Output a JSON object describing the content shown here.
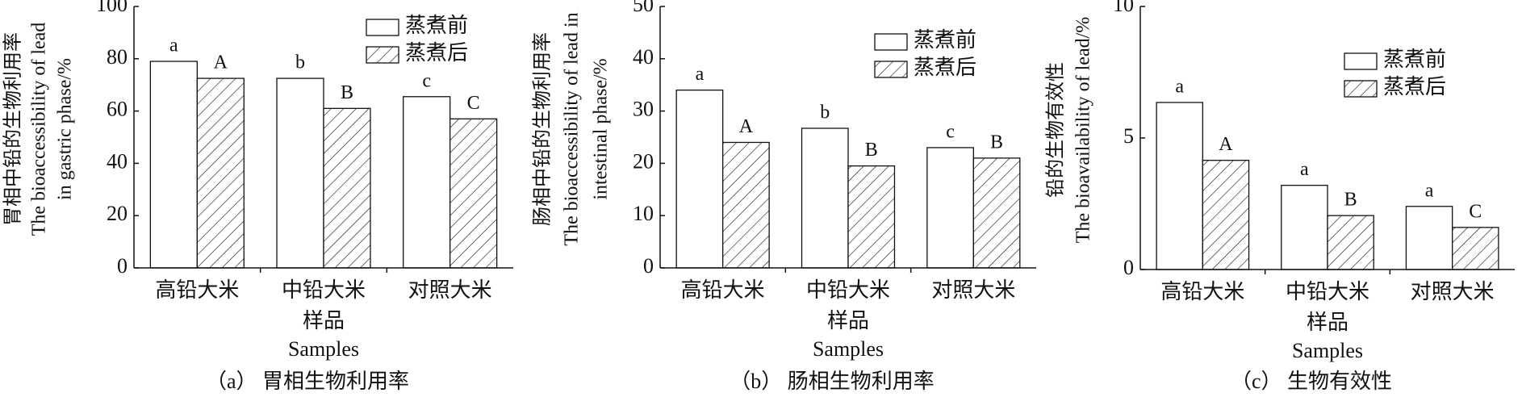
{
  "chart_data": [
    {
      "type": "bar",
      "caption": "（a） 胃相生物利用率",
      "ylabel": [
        "胃相中铅的生物利用率",
        "The bioaccessibility of lead",
        "in gastric phase/%"
      ],
      "xlabel": [
        "样品",
        "Samples"
      ],
      "categories": [
        "高铅大米",
        "中铅大米",
        "对照大米"
      ],
      "series": [
        {
          "name": "蒸煮前",
          "color": "#ffffff",
          "pattern": "none",
          "values": [
            79,
            72.5,
            65.5
          ],
          "annotations": [
            "a",
            "b",
            "c"
          ]
        },
        {
          "name": "蒸煮后",
          "color": "#ffffff",
          "pattern": "hatch",
          "values": [
            72.5,
            61,
            57
          ],
          "annotations": [
            "A",
            "B",
            "C"
          ]
        }
      ],
      "ylim": [
        0,
        100
      ],
      "yticks": [
        0,
        20,
        40,
        60,
        80,
        100
      ],
      "legend": "upper right"
    },
    {
      "type": "bar",
      "caption": "（b） 肠相生物利用率",
      "ylabel": [
        "肠相中铅的生物利用率",
        "The bioaccessibility of lead in",
        "intestinal phase/%"
      ],
      "xlabel": [
        "样品",
        "Samples"
      ],
      "categories": [
        "高铅大米",
        "中铅大米",
        "对照大米"
      ],
      "series": [
        {
          "name": "蒸煮前",
          "color": "#ffffff",
          "pattern": "none",
          "values": [
            34,
            26.7,
            23
          ],
          "annotations": [
            "a",
            "b",
            "c"
          ]
        },
        {
          "name": "蒸煮后",
          "color": "#ffffff",
          "pattern": "hatch",
          "values": [
            24,
            19.5,
            21
          ],
          "annotations": [
            "A",
            "B",
            "B"
          ]
        }
      ],
      "ylim": [
        0,
        50
      ],
      "yticks": [
        0,
        10,
        20,
        30,
        40,
        50
      ],
      "legend": "upper right"
    },
    {
      "type": "bar",
      "caption": "（c） 生物有效性",
      "ylabel": [
        "铅的生物有效性",
        "The bioavailability of lead/%"
      ],
      "xlabel": [
        "样品",
        "Samples"
      ],
      "categories": [
        "高铅大米",
        "中铅大米",
        "对照大米"
      ],
      "series": [
        {
          "name": "蒸煮前",
          "color": "#ffffff",
          "pattern": "none",
          "values": [
            6.35,
            3.2,
            2.4
          ],
          "annotations": [
            "a",
            "a",
            "a"
          ]
        },
        {
          "name": "蒸煮后",
          "color": "#ffffff",
          "pattern": "hatch",
          "values": [
            4.15,
            2.05,
            1.6
          ],
          "annotations": [
            "A",
            "B",
            "C"
          ]
        }
      ],
      "ylim": [
        0,
        10
      ],
      "yticks": [
        0,
        5,
        10
      ],
      "legend": "upper right"
    }
  ]
}
